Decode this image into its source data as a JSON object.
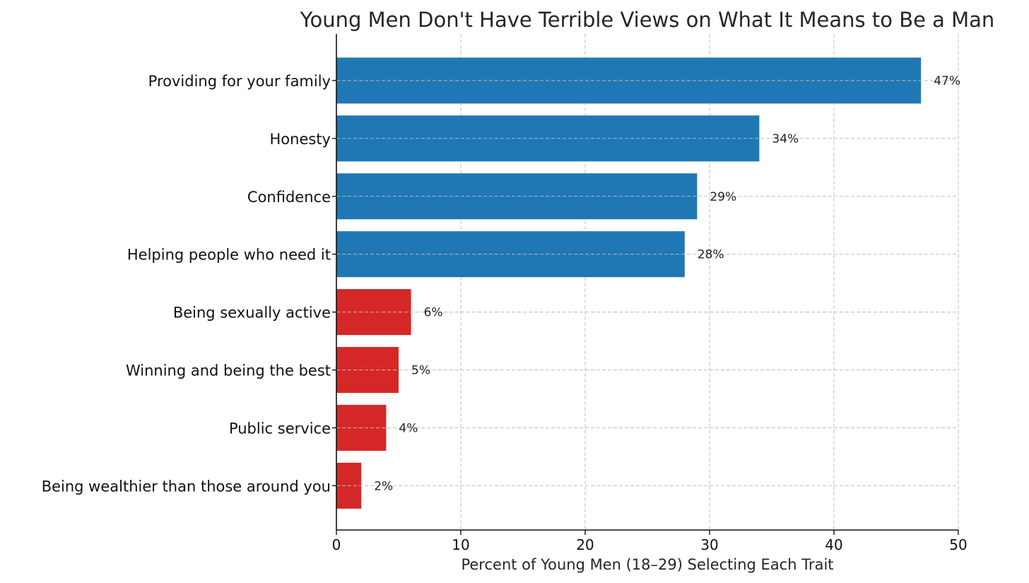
{
  "chart_data": {
    "type": "bar",
    "orientation": "horizontal",
    "title": "Young Men Don't Have Terrible Views on What It Means to Be a Man",
    "xlabel": "Percent of Young Men (18–29) Selecting Each Trait",
    "ylabel": "",
    "xlim": [
      0,
      50
    ],
    "xticks": [
      0,
      10,
      20,
      30,
      40,
      50
    ],
    "grid": true,
    "legend": "none",
    "categories": [
      "Providing for your family",
      "Honesty",
      "Confidence",
      "Helping people who need it",
      "Being sexually active",
      "Winning and being the best",
      "Public service",
      "Being wealthier than those around you"
    ],
    "values": [
      47,
      34,
      29,
      28,
      6,
      5,
      4,
      2
    ],
    "data_labels": [
      "47%",
      "34%",
      "29%",
      "28%",
      "6%",
      "5%",
      "4%",
      "2%"
    ],
    "bar_colors": [
      "#1f77b4",
      "#1f77b4",
      "#1f77b4",
      "#1f77b4",
      "#d62728",
      "#d62728",
      "#d62728",
      "#d62728"
    ]
  }
}
